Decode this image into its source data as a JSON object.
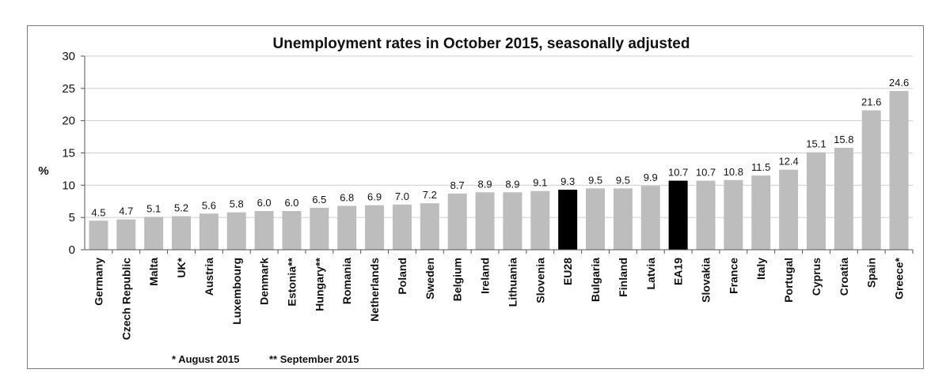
{
  "chart_data": {
    "type": "bar",
    "title": "Unemployment rates in October 2015, seasonally adjusted",
    "ylabel": "%",
    "ylim": [
      0,
      30
    ],
    "yticks": [
      0,
      5,
      10,
      15,
      20,
      25,
      30
    ],
    "grid": true,
    "categories": [
      "Germany",
      "Czech Republic",
      "Malta",
      "UK*",
      "Austria",
      "Luxembourg",
      "Denmark",
      "Estonia**",
      "Hungary**",
      "Romania",
      "Netherlands",
      "Poland",
      "Sweden",
      "Belgium",
      "Ireland",
      "Lithuania",
      "Slovenia",
      "EU28",
      "Bulgaria",
      "Finland",
      "Latvia",
      "EA19",
      "Slovakia",
      "France",
      "Italy",
      "Portugal",
      "Cyprus",
      "Croatia",
      "Spain",
      "Greece*"
    ],
    "values": [
      4.5,
      4.7,
      5.1,
      5.2,
      5.6,
      5.8,
      6.0,
      6.0,
      6.5,
      6.8,
      6.9,
      7.0,
      7.2,
      8.7,
      8.9,
      8.9,
      9.1,
      9.3,
      9.5,
      9.5,
      9.9,
      10.7,
      10.7,
      10.8,
      11.5,
      12.4,
      15.1,
      15.8,
      21.6,
      24.6
    ],
    "value_labels": [
      "4.5",
      "4.7",
      "5.1",
      "5.2",
      "5.6",
      "5.8",
      "6.0",
      "6.0",
      "6.5",
      "6.8",
      "6.9",
      "7.0",
      "7.2",
      "8.7",
      "8.9",
      "8.9",
      "9.1",
      "9.3",
      "9.5",
      "9.5",
      "9.9",
      "10.7",
      "10.7",
      "10.8",
      "11.5",
      "12.4",
      "15.1",
      "15.8",
      "21.6",
      "24.6"
    ],
    "colors": {
      "bar": "#bdbdbd",
      "highlight": "#000000",
      "grid": "#cfcfcf"
    },
    "highlighted": [
      "EU28",
      "EA19"
    ],
    "notes": [
      "* August 2015",
      "** September 2015"
    ]
  }
}
